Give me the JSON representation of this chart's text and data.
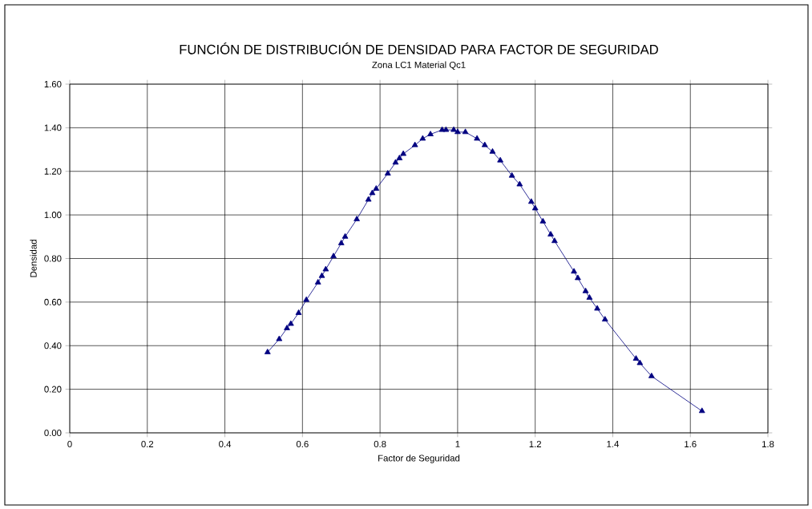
{
  "chart_data": {
    "type": "line",
    "title": "FUNCIÓN DE DISTRIBUCIÓN DE DENSIDAD PARA  FACTOR DE SEGURIDAD",
    "subtitle": "Zona LC1       Material  Qc1",
    "xlabel": "Factor de Seguridad",
    "ylabel": "Densidad",
    "x": [
      0.51,
      0.54,
      0.56,
      0.57,
      0.59,
      0.61,
      0.64,
      0.65,
      0.66,
      0.68,
      0.7,
      0.71,
      0.74,
      0.77,
      0.78,
      0.79,
      0.82,
      0.84,
      0.85,
      0.86,
      0.89,
      0.91,
      0.93,
      0.96,
      0.97,
      0.99,
      1.0,
      1.02,
      1.05,
      1.07,
      1.09,
      1.11,
      1.14,
      1.16,
      1.19,
      1.2,
      1.22,
      1.24,
      1.25,
      1.3,
      1.31,
      1.33,
      1.34,
      1.36,
      1.38,
      1.46,
      1.47,
      1.5,
      1.63
    ],
    "series": [
      {
        "color": "#000080",
        "values": [
          0.37,
          0.43,
          0.48,
          0.5,
          0.55,
          0.61,
          0.69,
          0.72,
          0.75,
          0.81,
          0.87,
          0.9,
          0.98,
          1.07,
          1.1,
          1.12,
          1.19,
          1.24,
          1.26,
          1.28,
          1.32,
          1.35,
          1.37,
          1.39,
          1.39,
          1.39,
          1.38,
          1.38,
          1.35,
          1.32,
          1.29,
          1.25,
          1.18,
          1.14,
          1.06,
          1.03,
          0.97,
          0.91,
          0.88,
          0.74,
          0.71,
          0.65,
          0.62,
          0.57,
          0.52,
          0.34,
          0.32,
          0.26,
          0.1
        ]
      }
    ],
    "xlim": [
      0,
      1.8
    ],
    "xticks": [
      0,
      0.2,
      0.4,
      0.6,
      0.8,
      1,
      1.2,
      1.4,
      1.6,
      1.8
    ],
    "ylim": [
      0,
      1.6
    ],
    "yticks": [
      {
        "value": 0,
        "label": "0.00"
      },
      {
        "value": 0.2,
        "label": "0.20"
      },
      {
        "value": 0.4,
        "label": "0.40"
      },
      {
        "value": 0.6,
        "label": "0.60"
      },
      {
        "value": 0.8,
        "label": "0.80"
      },
      {
        "value": 1.0,
        "label": "1.00"
      },
      {
        "value": 1.2,
        "label": "1.20"
      },
      {
        "value": 1.4,
        "label": "1.40"
      },
      {
        "value": 1.6,
        "label": "1.60"
      }
    ],
    "grid": true,
    "marker": "triangle",
    "line_style": "solid"
  }
}
